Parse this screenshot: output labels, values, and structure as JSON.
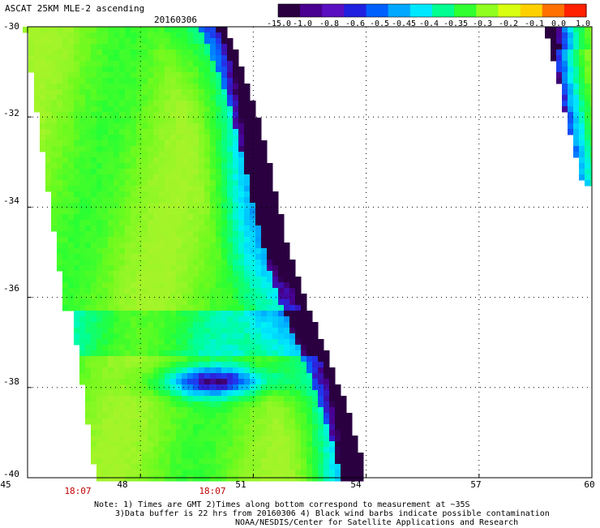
{
  "header": {
    "title": "ASCAT 25KM MLE-2 ascending",
    "date": "20160306"
  },
  "colorbar": {
    "labels": [
      "-15.0",
      "-1.0",
      "-0.8",
      "-0.6",
      "-0.5",
      "-0.45",
      "-0.4",
      "-0.35",
      "-0.3",
      "-0.2",
      "-0.1",
      "0.0",
      "1.0"
    ],
    "colors": [
      "#2a0040",
      "#4a0090",
      "#5a10c0",
      "#2020e0",
      "#0060ff",
      "#00a8ff",
      "#00e8ff",
      "#00ff90",
      "#30ff30",
      "#90ff20",
      "#d8ff10",
      "#ffd000",
      "#ff7000",
      "#ff2000"
    ]
  },
  "map": {
    "lat_ticks": [
      "-30",
      "-32",
      "-34",
      "-36",
      "-38",
      "-40"
    ],
    "lon_ticks": [
      "45",
      "48",
      "51",
      "54",
      "57",
      "60"
    ],
    "time_labels": [
      {
        "text": "18:07",
        "lon": 48
      },
      {
        "text": "18:07",
        "lon": 51
      }
    ],
    "lat_range": [
      -40,
      -30
    ],
    "lon_range": [
      45,
      60
    ]
  },
  "notes": {
    "line1": "Note: 1) Times are GMT 2)Times along bottom correspond to measurement at ~35S",
    "line2": "3)Data buffer is 22 hrs from 20160306 4) Black wind barbs indicate possible contamination",
    "line3": "NOAA/NESDIS/Center for Satellite Applications and Research"
  }
}
